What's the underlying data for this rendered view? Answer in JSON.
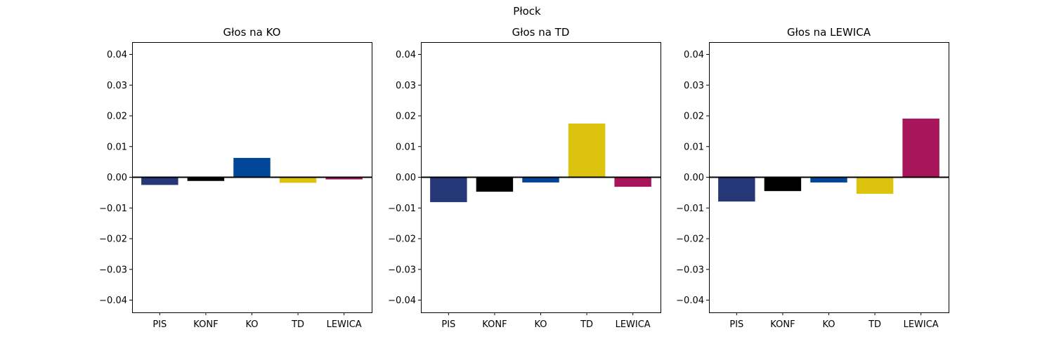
{
  "figure": {
    "suptitle": "Płock"
  },
  "colors": {
    "PIS": "#263778",
    "KONF": "#000000",
    "KO": "#004799",
    "TD": "#dcc30d",
    "LEWICA": "#a8155a"
  },
  "chart_data": [
    {
      "type": "bar",
      "title": "Głos na KO",
      "categories": [
        "PIS",
        "KONF",
        "KO",
        "TD",
        "LEWICA"
      ],
      "values": [
        -0.0025,
        -0.0012,
        0.0063,
        -0.0018,
        -0.0007
      ],
      "ylim": [
        -0.044,
        0.044
      ],
      "yticks": [
        0.04,
        0.03,
        0.02,
        0.01,
        0.0,
        -0.01,
        -0.02,
        -0.03,
        -0.04
      ],
      "ytick_labels": [
        "0.04",
        "0.03",
        "0.02",
        "0.01",
        "0.00",
        "−0.01",
        "−0.02",
        "−0.03",
        "−0.04"
      ],
      "zero_line": true,
      "grid": false
    },
    {
      "type": "bar",
      "title": "Głos na TD",
      "categories": [
        "PIS",
        "KONF",
        "KO",
        "TD",
        "LEWICA"
      ],
      "values": [
        -0.0081,
        -0.0047,
        -0.0017,
        0.0175,
        -0.0031
      ],
      "ylim": [
        -0.044,
        0.044
      ],
      "yticks": [
        0.04,
        0.03,
        0.02,
        0.01,
        0.0,
        -0.01,
        -0.02,
        -0.03,
        -0.04
      ],
      "ytick_labels": [
        "0.04",
        "0.03",
        "0.02",
        "0.01",
        "0.00",
        "−0.01",
        "−0.02",
        "−0.03",
        "−0.04"
      ],
      "zero_line": true,
      "grid": false
    },
    {
      "type": "bar",
      "title": "Głos na LEWICA",
      "categories": [
        "PIS",
        "KONF",
        "KO",
        "TD",
        "LEWICA"
      ],
      "values": [
        -0.0079,
        -0.0045,
        -0.0017,
        -0.0054,
        0.0191
      ],
      "ylim": [
        -0.044,
        0.044
      ],
      "yticks": [
        0.04,
        0.03,
        0.02,
        0.01,
        0.0,
        -0.01,
        -0.02,
        -0.03,
        -0.04
      ],
      "ytick_labels": [
        "0.04",
        "0.03",
        "0.02",
        "0.01",
        "0.00",
        "−0.01",
        "−0.02",
        "−0.03",
        "−0.04"
      ],
      "zero_line": true,
      "grid": false
    }
  ]
}
